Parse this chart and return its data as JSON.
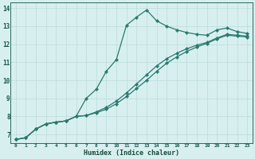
{
  "xlabel": "Humidex (Indice chaleur)",
  "background_color": "#d8eff0",
  "grid_color": "#c0dede",
  "line_color": "#2a7a6e",
  "xlim": [
    -0.5,
    23.5
  ],
  "ylim": [
    6.5,
    14.3
  ],
  "xticks": [
    0,
    1,
    2,
    3,
    4,
    5,
    6,
    7,
    8,
    9,
    10,
    11,
    12,
    13,
    14,
    15,
    16,
    17,
    18,
    19,
    20,
    21,
    22,
    23
  ],
  "yticks": [
    7,
    8,
    9,
    10,
    11,
    12,
    13,
    14
  ],
  "line1_x": [
    0,
    1,
    2,
    3,
    4,
    5,
    6,
    7,
    8,
    9,
    10,
    11,
    12,
    13,
    14,
    15,
    16,
    17,
    18,
    19,
    20,
    21,
    22,
    23
  ],
  "line1_y": [
    6.72,
    6.82,
    7.3,
    7.58,
    7.68,
    7.75,
    8.0,
    9.0,
    9.5,
    10.5,
    11.15,
    13.05,
    13.5,
    13.9,
    13.3,
    13.0,
    12.8,
    12.65,
    12.55,
    12.5,
    12.8,
    12.9,
    12.7,
    12.6
  ],
  "line2_x": [
    0,
    1,
    2,
    3,
    4,
    5,
    6,
    7,
    8,
    9,
    10,
    11,
    12,
    13,
    14,
    15,
    16,
    17,
    18,
    19,
    20,
    21,
    22,
    23
  ],
  "line2_y": [
    6.72,
    6.82,
    7.3,
    7.58,
    7.68,
    7.75,
    8.0,
    8.05,
    8.25,
    8.5,
    8.85,
    9.3,
    9.8,
    10.3,
    10.8,
    11.2,
    11.5,
    11.75,
    11.95,
    12.1,
    12.35,
    12.55,
    12.5,
    12.45
  ],
  "line3_x": [
    0,
    1,
    2,
    3,
    4,
    5,
    6,
    7,
    8,
    9,
    10,
    11,
    12,
    13,
    14,
    15,
    16,
    17,
    18,
    19,
    20,
    21,
    22,
    23
  ],
  "line3_y": [
    6.72,
    6.82,
    7.3,
    7.58,
    7.68,
    7.75,
    8.0,
    8.05,
    8.2,
    8.4,
    8.7,
    9.1,
    9.55,
    10.0,
    10.5,
    10.95,
    11.3,
    11.6,
    11.85,
    12.05,
    12.3,
    12.5,
    12.45,
    12.4
  ]
}
